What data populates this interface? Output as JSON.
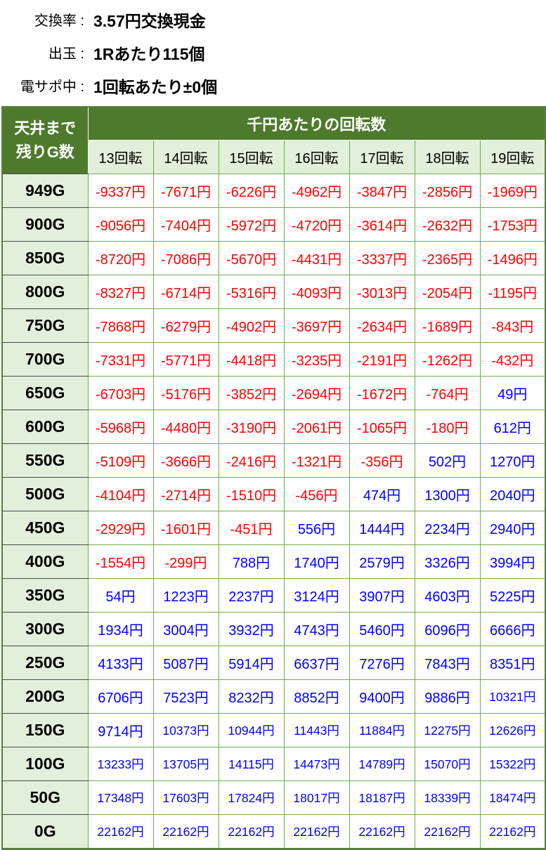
{
  "info": {
    "rows": [
      {
        "label": "交換率 :",
        "value": "3.57円交換現金"
      },
      {
        "label": "出玉 :",
        "value": "1Rあたり115個"
      },
      {
        "label": "電サポ中 :",
        "value": "1回転あたり±0個"
      }
    ]
  },
  "table": {
    "corner_line1": "天井まで",
    "corner_line2": "残りG数",
    "group_header": "千円あたりの回転数",
    "column_headers": [
      "13回転",
      "14回転",
      "15回転",
      "16回転",
      "17回転",
      "18回転",
      "19回転"
    ],
    "rows": [
      {
        "label": "949G",
        "values": [
          "-9337円",
          "-7671円",
          "-6226円",
          "-4962円",
          "-3847円",
          "-2856円",
          "-1969円"
        ]
      },
      {
        "label": "900G",
        "values": [
          "-9056円",
          "-7404円",
          "-5972円",
          "-4720円",
          "-3614円",
          "-2632円",
          "-1753円"
        ]
      },
      {
        "label": "850G",
        "values": [
          "-8720円",
          "-7086円",
          "-5670円",
          "-4431円",
          "-3337円",
          "-2365円",
          "-1496円"
        ]
      },
      {
        "label": "800G",
        "values": [
          "-8327円",
          "-6714円",
          "-5316円",
          "-4093円",
          "-3013円",
          "-2054円",
          "-1195円"
        ]
      },
      {
        "label": "750G",
        "values": [
          "-7868円",
          "-6279円",
          "-4902円",
          "-3697円",
          "-2634円",
          "-1689円",
          "-843円"
        ]
      },
      {
        "label": "700G",
        "values": [
          "-7331円",
          "-5771円",
          "-4418円",
          "-3235円",
          "-2191円",
          "-1262円",
          "-432円"
        ]
      },
      {
        "label": "650G",
        "values": [
          "-6703円",
          "-5176円",
          "-3852円",
          "-2694円",
          "-1672円",
          "-764円",
          "49円"
        ]
      },
      {
        "label": "600G",
        "values": [
          "-5968円",
          "-4480円",
          "-3190円",
          "-2061円",
          "-1065円",
          "-180円",
          "612円"
        ]
      },
      {
        "label": "550G",
        "values": [
          "-5109円",
          "-3666円",
          "-2416円",
          "-1321円",
          "-356円",
          "502円",
          "1270円"
        ]
      },
      {
        "label": "500G",
        "values": [
          "-4104円",
          "-2714円",
          "-1510円",
          "-456円",
          "474円",
          "1300円",
          "2040円"
        ]
      },
      {
        "label": "450G",
        "values": [
          "-2929円",
          "-1601円",
          "-451円",
          "556円",
          "1444円",
          "2234円",
          "2940円"
        ]
      },
      {
        "label": "400G",
        "values": [
          "-1554円",
          "-299円",
          "788円",
          "1740円",
          "2579円",
          "3326円",
          "3994円"
        ]
      },
      {
        "label": "350G",
        "values": [
          "54円",
          "1223円",
          "2237円",
          "3124円",
          "3907円",
          "4603円",
          "5225円"
        ]
      },
      {
        "label": "300G",
        "values": [
          "1934円",
          "3004円",
          "3932円",
          "4743円",
          "5460円",
          "6096円",
          "6666円"
        ]
      },
      {
        "label": "250G",
        "values": [
          "4133円",
          "5087円",
          "5914円",
          "6637円",
          "7276円",
          "7843円",
          "8351円"
        ]
      },
      {
        "label": "200G",
        "values": [
          "6706円",
          "7523円",
          "8232円",
          "8852円",
          "9400円",
          "9886円",
          "10321円"
        ]
      },
      {
        "label": "150G",
        "values": [
          "9714円",
          "10373円",
          "10944円",
          "11443円",
          "11884円",
          "12275円",
          "12626円"
        ]
      },
      {
        "label": "100G",
        "values": [
          "13233円",
          "13705円",
          "14115円",
          "14473円",
          "14789円",
          "15070円",
          "15322円"
        ]
      },
      {
        "label": "50G",
        "values": [
          "17348円",
          "17603円",
          "17824円",
          "18017円",
          "18187円",
          "18339円",
          "18474円"
        ]
      },
      {
        "label": "0G",
        "values": [
          "22162円",
          "22162円",
          "22162円",
          "22162円",
          "22162円",
          "22162円",
          "22162円"
        ]
      }
    ]
  },
  "colors": {
    "header_bg": "#4E7A2D",
    "light_bg": "#E2EFDA",
    "border_green": "#70AD47",
    "outer_border": "#538135",
    "negative_text": "#FF0000",
    "positive_text": "#0000FF"
  }
}
